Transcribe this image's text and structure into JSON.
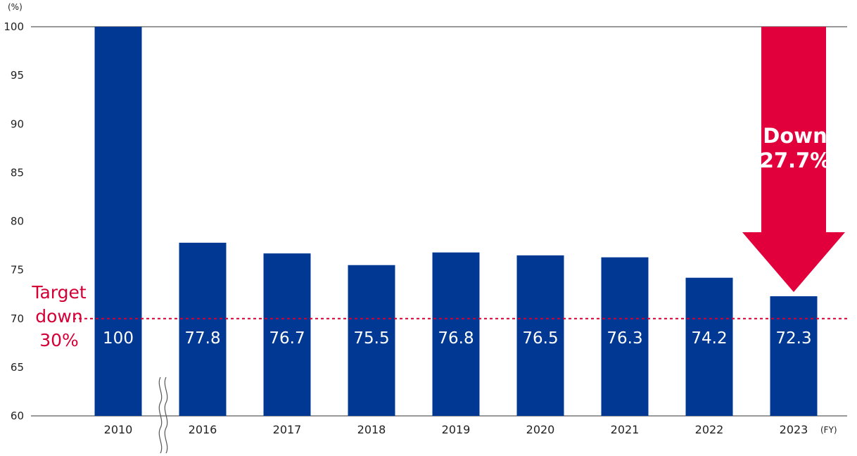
{
  "chart_data": {
    "type": "bar",
    "categories": [
      "2010",
      "2016",
      "2017",
      "2018",
      "2019",
      "2020",
      "2021",
      "2022",
      "2023"
    ],
    "values": [
      100,
      77.8,
      76.7,
      75.5,
      76.8,
      76.5,
      76.3,
      74.2,
      72.3
    ],
    "data_labels": [
      "100",
      "77.8",
      "76.7",
      "75.5",
      "76.8",
      "76.5",
      "76.3",
      "74.2",
      "72.3"
    ],
    "ylim": [
      60,
      100
    ],
    "yticks": [
      60,
      65,
      70,
      75,
      80,
      85,
      90,
      95,
      100
    ],
    "y_unit": "(%)",
    "x_unit": "(FY)",
    "axis_break_after": "2010",
    "target": {
      "value": 70,
      "label_lines": [
        "Target",
        "down",
        "30%"
      ]
    },
    "annotation": {
      "label_lines": [
        "Down",
        "27.7%"
      ],
      "from_value": 100,
      "to_value": 72.3,
      "category": "2023"
    },
    "colors": {
      "bar": "#013893",
      "accent": "#e1003c",
      "target": "#d40035",
      "text": "#222222"
    }
  }
}
